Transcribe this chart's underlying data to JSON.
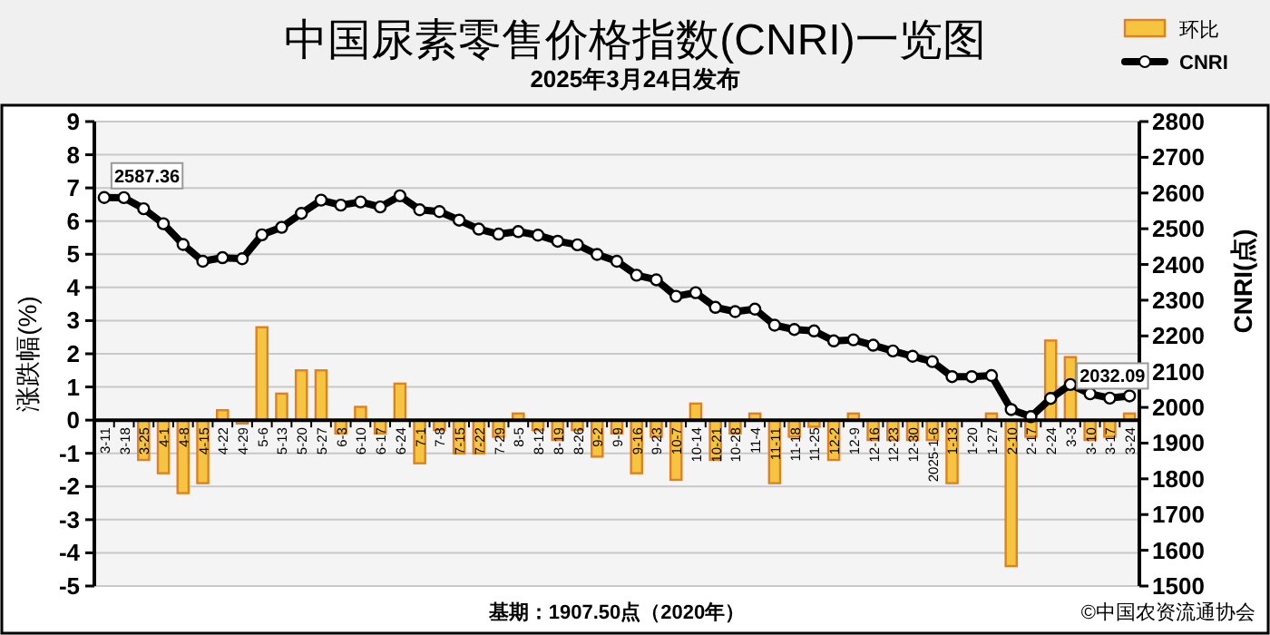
{
  "chart_data": {
    "type": "bar",
    "title": "中国尿素零售价格指数(CNRI)一览图",
    "subtitle": "2025年3月24日发布",
    "ylabel": "涨跌幅(%)",
    "y2label": "CNRI(点)",
    "annotations": [
      "基期：1907.50点（2020年）",
      "©中国农资流通协会"
    ],
    "categories": [
      "3-11",
      "3-18",
      "3-25",
      "4-1",
      "4-8",
      "4-15",
      "4-22",
      "4-29",
      "5-6",
      "5-13",
      "5-20",
      "5-27",
      "6-3",
      "6-10",
      "6-17",
      "6-24",
      "7-1",
      "7-8",
      "7-15",
      "7-22",
      "7-29",
      "8-5",
      "8-12",
      "8-19",
      "8-26",
      "9-2",
      "9-9",
      "9-16",
      "9-23",
      "10-7",
      "10-14",
      "10-21",
      "10-28",
      "11-4",
      "11-11",
      "11-18",
      "11-25",
      "12-2",
      "12-9",
      "12-16",
      "12-23",
      "12-30",
      "2025-1-6",
      "1-13",
      "1-20",
      "1-27",
      "2-10",
      "2-17",
      "2-24",
      "3-3",
      "3-10",
      "3-17",
      "3-24"
    ],
    "series": [
      {
        "name": "环比",
        "color": "#f5c542",
        "values": [
          0,
          0,
          -1.2,
          -1.6,
          -2.2,
          -1.9,
          0.3,
          -0.1,
          2.8,
          0.8,
          1.5,
          1.5,
          -0.4,
          0.4,
          -0.4,
          1.1,
          -1.3,
          -0.3,
          -1.0,
          -1.0,
          -0.5,
          0.2,
          -0.3,
          -0.6,
          -0.3,
          -1.1,
          -0.4,
          -1.6,
          -0.5,
          -1.8,
          0.5,
          -1.2,
          -0.4,
          0.2,
          -1.9,
          -0.5,
          -0.2,
          -1.2,
          0.2,
          -0.6,
          -0.6,
          -0.6,
          -0.6,
          -1.9,
          0,
          0.2,
          -4.4,
          -0.5,
          2.4,
          1.9,
          -0.6,
          -0.5,
          0.2
        ]
      },
      {
        "name": "CNRI",
        "type": "line",
        "axis": "y2",
        "color": "#000000",
        "values": [
          2587.36,
          2587,
          2556,
          2514,
          2456,
          2409,
          2419,
          2416,
          2483,
          2504,
          2543,
          2580,
          2566,
          2575,
          2561,
          2592,
          2553,
          2548,
          2524,
          2499,
          2485,
          2492,
          2482,
          2465,
          2455,
          2428,
          2409,
          2370,
          2357,
          2311,
          2321,
          2280,
          2268,
          2275,
          2230,
          2218,
          2214,
          2186,
          2189,
          2174,
          2158,
          2143,
          2128,
          2086,
          2086,
          2089,
          1994,
          1974,
          2025,
          2064,
          2038,
          2026,
          2032.09
        ],
        "value_labels": [
          "2587.36",
          null,
          null,
          null,
          null,
          null,
          null,
          null,
          null,
          null,
          null,
          null,
          null,
          null,
          null,
          null,
          null,
          null,
          null,
          null,
          null,
          null,
          null,
          null,
          null,
          null,
          null,
          null,
          null,
          null,
          null,
          null,
          null,
          null,
          null,
          null,
          null,
          null,
          null,
          null,
          null,
          null,
          null,
          null,
          null,
          null,
          null,
          null,
          null,
          null,
          null,
          null,
          "2032.09"
        ]
      }
    ],
    "ylim": [
      -5,
      9
    ],
    "yticks": [
      -5,
      -4,
      -3,
      -2,
      -1,
      0,
      1,
      2,
      3,
      4,
      5,
      6,
      7,
      8,
      9
    ],
    "y2lim": [
      1500,
      2800
    ],
    "y2ticks": [
      1500,
      1600,
      1700,
      1800,
      1900,
      2000,
      2100,
      2200,
      2300,
      2400,
      2500,
      2600,
      2700,
      2800
    ],
    "grid": "y",
    "legend": "top right",
    "marker": "circle",
    "line_style": "solid"
  }
}
